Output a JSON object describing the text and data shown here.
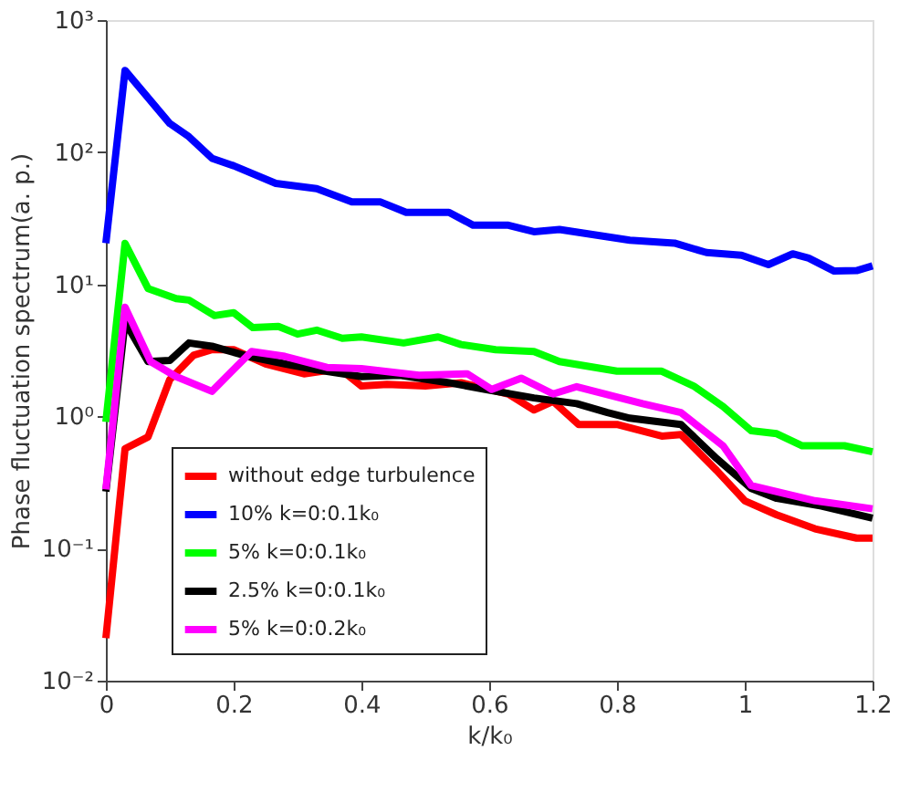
{
  "chart_data": {
    "type": "line",
    "xlabel": "k/k₀",
    "ylabel": "Phase fluctuation spectrum(a. p.)",
    "log": "y",
    "grid": false,
    "legend": "bottom left",
    "line_style": "solid",
    "marker": "none",
    "xlim": [
      0,
      1.2
    ],
    "xticks": [
      0,
      0.2,
      0.4,
      0.6,
      0.8,
      1,
      1.2
    ],
    "ylim": [
      0.01,
      1000
    ],
    "yticks": [
      {
        "value": 0.01,
        "label": "10⁻²"
      },
      {
        "value": 0.1,
        "label": "10⁻¹"
      },
      {
        "value": 1,
        "label": "10⁰"
      },
      {
        "value": 10,
        "label": "10¹"
      },
      {
        "value": 100,
        "label": "10²"
      },
      {
        "value": 1000,
        "label": "10³"
      }
    ],
    "series": [
      {
        "name": "without edge turbulence",
        "color": "#ff0000",
        "x": [
          0,
          0.03,
          0.066,
          0.1,
          0.137,
          0.166,
          0.2,
          0.25,
          0.31,
          0.366,
          0.4,
          0.44,
          0.5,
          0.556,
          0.63,
          0.67,
          0.7,
          0.74,
          0.8,
          0.87,
          0.9,
          0.956,
          1.0,
          1.05,
          1.11,
          1.175,
          1.2
        ],
        "values": [
          0.021,
          0.57,
          0.7,
          1.9,
          2.9,
          3.2,
          3.2,
          2.5,
          2.1,
          2.3,
          1.7,
          1.75,
          1.7,
          1.8,
          1.48,
          1.12,
          1.3,
          0.87,
          0.87,
          0.71,
          0.73,
          0.39,
          0.23,
          0.18,
          0.141,
          0.12,
          0.12
        ]
      },
      {
        "name": "10% k=0:0.1k₀",
        "color": "#0000ff",
        "x": [
          0,
          0.03,
          0.1,
          0.13,
          0.166,
          0.2,
          0.266,
          0.33,
          0.385,
          0.43,
          0.47,
          0.537,
          0.575,
          0.63,
          0.67,
          0.71,
          0.82,
          0.89,
          0.94,
          0.995,
          1.037,
          1.075,
          1.1,
          1.14,
          1.175,
          1.2
        ],
        "values": [
          20.5,
          416,
          165,
          131,
          90,
          79,
          58,
          53,
          42,
          42,
          35,
          35,
          28,
          28,
          25,
          26,
          21.6,
          20.5,
          17.4,
          16.6,
          14.1,
          17,
          15.8,
          12.6,
          12.7,
          13.8
        ]
      },
      {
        "name": "5% k=0:0.1k₀",
        "color": "#00ff00",
        "x": [
          0,
          0.03,
          0.066,
          0.11,
          0.13,
          0.17,
          0.2,
          0.23,
          0.27,
          0.3,
          0.33,
          0.37,
          0.4,
          0.466,
          0.52,
          0.556,
          0.61,
          0.67,
          0.71,
          0.8,
          0.87,
          0.92,
          0.966,
          1.01,
          1.05,
          1.09,
          1.156,
          1.2
        ],
        "values": [
          0.91,
          20.4,
          9.3,
          7.8,
          7.6,
          5.8,
          6.1,
          4.7,
          4.8,
          4.2,
          4.5,
          3.9,
          4.0,
          3.6,
          4.0,
          3.5,
          3.2,
          3.1,
          2.6,
          2.2,
          2.2,
          1.7,
          1.19,
          0.78,
          0.74,
          0.6,
          0.6,
          0.54
        ]
      },
      {
        "name": "2.5% k=0:0.1k₀",
        "color": "#000000",
        "x": [
          0,
          0.03,
          0.066,
          0.1,
          0.13,
          0.166,
          0.223,
          0.28,
          0.33,
          0.4,
          0.46,
          0.537,
          0.594,
          0.67,
          0.737,
          0.785,
          0.82,
          0.9,
          0.956,
          1.01,
          1.05,
          1.12,
          1.2
        ],
        "values": [
          0.27,
          5.2,
          2.6,
          2.65,
          3.6,
          3.4,
          2.85,
          2.5,
          2.25,
          2.0,
          2.05,
          1.8,
          1.6,
          1.38,
          1.25,
          1.07,
          0.97,
          0.87,
          0.48,
          0.285,
          0.24,
          0.21,
          0.17
        ]
      },
      {
        "name": "5% k=0:0.2k₀",
        "color": "#ff00ff",
        "x": [
          0,
          0.03,
          0.07,
          0.11,
          0.166,
          0.228,
          0.28,
          0.346,
          0.4,
          0.49,
          0.566,
          0.604,
          0.65,
          0.7,
          0.737,
          0.84,
          0.9,
          0.966,
          1.01,
          1.11,
          1.2
        ],
        "values": [
          0.28,
          6.7,
          2.6,
          2.0,
          1.55,
          3.1,
          2.85,
          2.35,
          2.3,
          2.05,
          2.1,
          1.6,
          1.95,
          1.48,
          1.68,
          1.25,
          1.07,
          0.6,
          0.3,
          0.23,
          0.2
        ]
      }
    ]
  }
}
